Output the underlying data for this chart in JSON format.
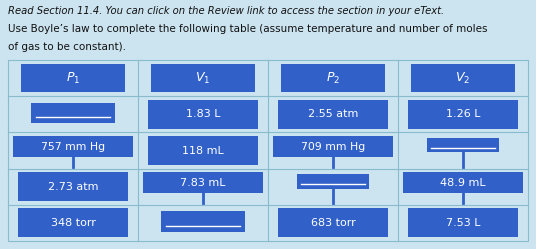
{
  "bg_color": "#cce4f0",
  "cell_color": "#3060c8",
  "text_color": "#ffffff",
  "border_color": "#88bbcc",
  "title1": "Read Section 11.4. You can click on the Review link to access the section in your eText.",
  "title2": "Use Boyle’s law to complete the following table (assume temperature and number of moles of gas to be constant).",
  "headers": [
    "$P_1$",
    "$V_1$",
    "$P_2$",
    "$V_2$"
  ],
  "rows": [
    [
      "",
      "1.83 L",
      "2.55 atm",
      "1.26 L"
    ],
    [
      "757 mm Hg",
      "118 mL",
      "709 mm Hg",
      ""
    ],
    [
      "2.73 atm",
      "7.83 mL",
      "",
      "48.9 mL"
    ],
    [
      "348 torr",
      "",
      "683 torr",
      "7.53 L"
    ]
  ],
  "figsize": [
    5.36,
    2.49
  ],
  "dpi": 100
}
